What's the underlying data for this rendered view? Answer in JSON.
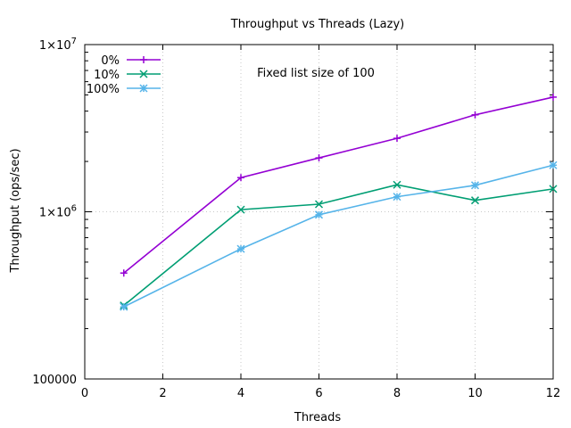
{
  "chart_data": {
    "type": "line",
    "title": "Throughput vs Threads (Lazy)",
    "annotation": "Fixed list size of 100",
    "xlabel": "Threads",
    "ylabel": "Throughput (ops/sec)",
    "xlim": [
      0,
      12
    ],
    "ylim": [
      100000,
      10000000
    ],
    "yscale": "log",
    "grid": true,
    "legend": "top-left",
    "x_ticks": [
      0,
      2,
      4,
      6,
      8,
      10,
      12
    ],
    "x_tick_labels": [
      "0",
      "2",
      "4",
      "6",
      "8",
      "10",
      "12"
    ],
    "y_ticks": [
      {
        "value": 100000,
        "base": "100000",
        "exp": ""
      },
      {
        "value": 1000000,
        "base": "1×10",
        "exp": "6"
      },
      {
        "value": 10000000,
        "base": "1×10",
        "exp": "7"
      }
    ],
    "x": [
      1,
      4,
      6,
      8,
      10,
      12
    ],
    "series": [
      {
        "name": "0%",
        "color": "#9400d3",
        "marker": "plus",
        "values": [
          430000,
          1600000,
          2100000,
          2750000,
          3800000,
          4850000
        ]
      },
      {
        "name": "10%",
        "color": "#009e73",
        "marker": "cross",
        "values": [
          275000,
          1030000,
          1110000,
          1450000,
          1170000,
          1370000
        ]
      },
      {
        "name": "100%",
        "color": "#56b4e9",
        "marker": "star",
        "values": [
          270000,
          600000,
          960000,
          1230000,
          1440000,
          1900000
        ]
      }
    ]
  }
}
